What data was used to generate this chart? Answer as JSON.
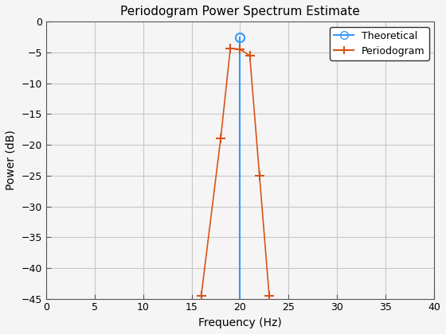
{
  "title": "Periodogram Power Spectrum Estimate",
  "xlabel": "Frequency (Hz)",
  "ylabel": "Power (dB)",
  "xlim": [
    0,
    40
  ],
  "ylim": [
    -45,
    0
  ],
  "xticks": [
    0,
    5,
    10,
    15,
    20,
    25,
    30,
    35,
    40
  ],
  "yticks": [
    0,
    -5,
    -10,
    -15,
    -20,
    -25,
    -30,
    -35,
    -40,
    -45
  ],
  "theoretical_x": [
    20
  ],
  "theoretical_y": [
    -2.5
  ],
  "theoretical_color": "#3399FF",
  "periodogram_x": [
    16,
    18,
    19,
    20,
    21,
    22,
    23
  ],
  "periodogram_y": [
    -44.5,
    -19.0,
    -4.3,
    -4.5,
    -5.5,
    -25.0,
    -44.5
  ],
  "periodogram_color": "#D95319",
  "background_color": "#f5f5f5",
  "grid_color": "#c8c8c8",
  "figsize": [
    5.6,
    4.2
  ],
  "dpi": 100
}
